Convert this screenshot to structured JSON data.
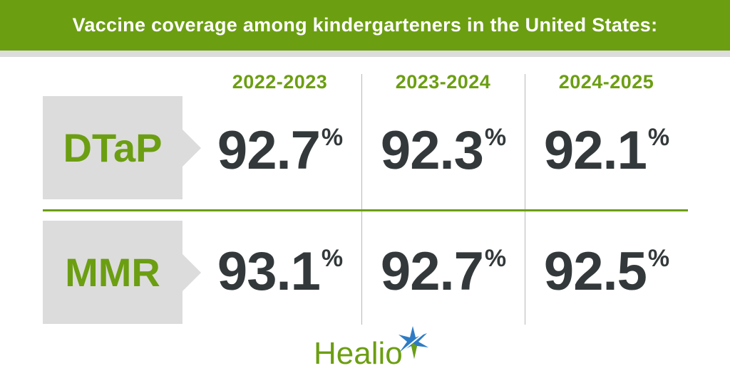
{
  "title": "Vaccine coverage among kindergarteners in the United States:",
  "colors": {
    "accent": "#6c9e12",
    "label_bg": "#dcdcdc",
    "value": "#33393b",
    "star": "#2e7bc4"
  },
  "chart_data": {
    "type": "table",
    "title": "Vaccine coverage among kindergarteners in the United States:",
    "columns": [
      "2022-2023",
      "2023-2024",
      "2024-2025"
    ],
    "rows": [
      {
        "name": "DTaP",
        "values": [
          92.7,
          92.3,
          92.1
        ],
        "display": [
          "92.7",
          "92.3",
          "92.1"
        ]
      },
      {
        "name": "MMR",
        "values": [
          93.1,
          92.7,
          92.5
        ],
        "display": [
          "93.1",
          "92.7",
          "92.5"
        ]
      }
    ],
    "unit": "%"
  },
  "logo": {
    "text": "Healio",
    "icon": "star-burst-icon"
  }
}
